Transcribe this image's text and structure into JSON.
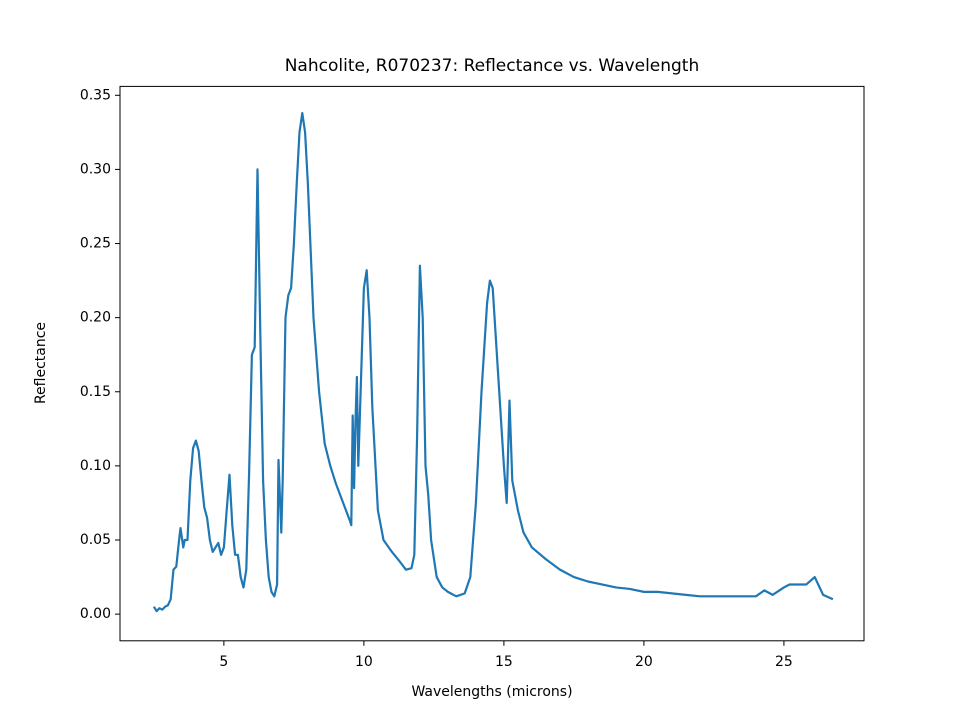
{
  "chart_data": {
    "type": "line",
    "title": "Nahcolite, R070237: Reflectance vs. Wavelength",
    "xlabel": "Wavelengths (microns)",
    "ylabel": "Reflectance",
    "x": [
      2.5,
      2.6,
      2.7,
      2.8,
      2.9,
      3.0,
      3.1,
      3.2,
      3.3,
      3.4,
      3.45,
      3.55,
      3.6,
      3.7,
      3.8,
      3.9,
      4.0,
      4.1,
      4.2,
      4.3,
      4.4,
      4.5,
      4.6,
      4.7,
      4.8,
      4.9,
      5.0,
      5.1,
      5.2,
      5.3,
      5.4,
      5.5,
      5.6,
      5.7,
      5.8,
      5.9,
      6.0,
      6.1,
      6.2,
      6.3,
      6.4,
      6.5,
      6.6,
      6.7,
      6.8,
      6.9,
      6.95,
      7.05,
      7.1,
      7.2,
      7.3,
      7.4,
      7.5,
      7.6,
      7.7,
      7.8,
      7.9,
      8.0,
      8.2,
      8.4,
      8.6,
      8.8,
      9.0,
      9.2,
      9.4,
      9.5,
      9.55,
      9.6,
      9.65,
      9.7,
      9.75,
      9.8,
      9.9,
      10.0,
      10.1,
      10.2,
      10.3,
      10.5,
      10.7,
      11.0,
      11.3,
      11.5,
      11.7,
      11.8,
      11.9,
      12.0,
      12.1,
      12.2,
      12.3,
      12.4,
      12.6,
      12.8,
      13.0,
      13.3,
      13.6,
      13.8,
      14.0,
      14.2,
      14.4,
      14.5,
      14.6,
      14.8,
      15.0,
      15.1,
      15.2,
      15.3,
      15.5,
      15.7,
      16.0,
      16.5,
      17.0,
      17.5,
      18.0,
      18.5,
      19.0,
      19.5,
      20.0,
      20.5,
      21.0,
      21.5,
      22.0,
      22.5,
      23.0,
      23.5,
      24.0,
      24.3,
      24.6,
      25.0,
      25.2,
      25.5,
      25.8,
      26.1,
      26.4,
      26.75
    ],
    "series": [
      {
        "name": "Reflectance",
        "color": "#1f77b4",
        "values": [
          0.005,
          0.002,
          0.004,
          0.003,
          0.005,
          0.006,
          0.01,
          0.03,
          0.032,
          0.05,
          0.058,
          0.045,
          0.05,
          0.05,
          0.09,
          0.112,
          0.117,
          0.11,
          0.09,
          0.072,
          0.065,
          0.05,
          0.042,
          0.045,
          0.048,
          0.04,
          0.045,
          0.07,
          0.094,
          0.06,
          0.04,
          0.04,
          0.025,
          0.018,
          0.03,
          0.095,
          0.175,
          0.18,
          0.3,
          0.19,
          0.09,
          0.05,
          0.025,
          0.015,
          0.012,
          0.02,
          0.104,
          0.055,
          0.09,
          0.2,
          0.215,
          0.22,
          0.25,
          0.29,
          0.325,
          0.338,
          0.325,
          0.29,
          0.2,
          0.15,
          0.115,
          0.1,
          0.088,
          0.078,
          0.068,
          0.063,
          0.06,
          0.134,
          0.085,
          0.13,
          0.16,
          0.1,
          0.16,
          0.22,
          0.232,
          0.2,
          0.14,
          0.07,
          0.05,
          0.042,
          0.035,
          0.03,
          0.031,
          0.04,
          0.12,
          0.235,
          0.2,
          0.1,
          0.08,
          0.05,
          0.025,
          0.018,
          0.015,
          0.012,
          0.014,
          0.025,
          0.075,
          0.15,
          0.21,
          0.225,
          0.22,
          0.16,
          0.1,
          0.075,
          0.144,
          0.09,
          0.07,
          0.055,
          0.045,
          0.037,
          0.03,
          0.025,
          0.022,
          0.02,
          0.018,
          0.017,
          0.015,
          0.015,
          0.014,
          0.013,
          0.012,
          0.012,
          0.012,
          0.012,
          0.012,
          0.016,
          0.013,
          0.018,
          0.02,
          0.02,
          0.02,
          0.025,
          0.013,
          0.01
        ]
      }
    ],
    "xlim": [
      1.29,
      27.86
    ],
    "xticks": [
      5,
      10,
      15,
      20,
      25
    ],
    "ylim": [
      -0.018,
      0.356
    ],
    "yticks": [
      {
        "value": 0,
        "label": "0.00"
      },
      0.05,
      {
        "value": 0.1,
        "label": "0.10"
      },
      0.15,
      {
        "value": 0.2,
        "label": "0.20"
      },
      0.25,
      {
        "value": 0.3,
        "label": "0.30"
      },
      0.35
    ],
    "grid": false
  }
}
